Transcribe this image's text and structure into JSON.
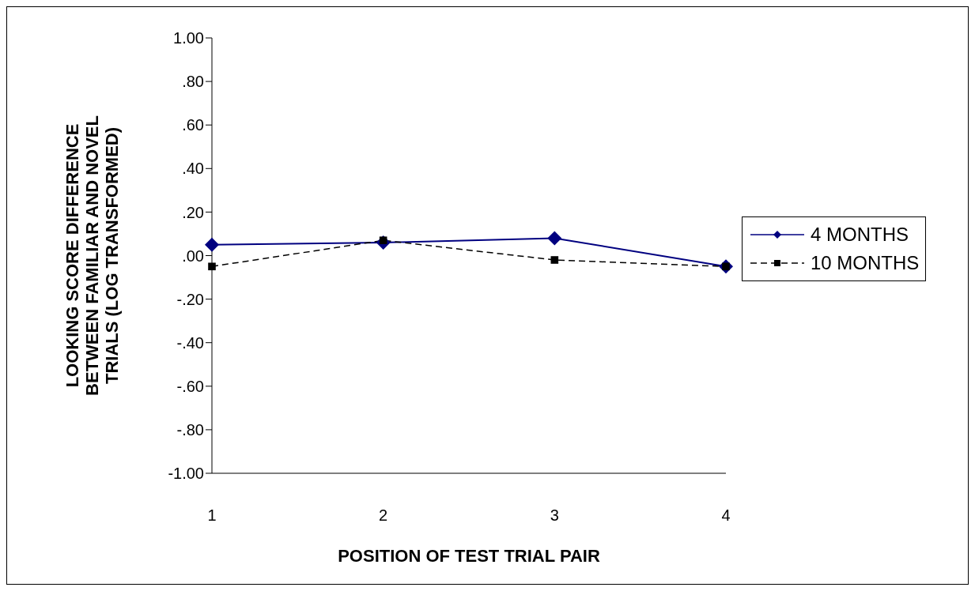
{
  "chart_data": {
    "type": "line",
    "xlabel": "POSITION OF TEST TRIAL PAIR",
    "ylabel": "LOOKING SCORE DIFFERENCE BETWEEN FAMILIAR AND NOVEL TRIALS (LOG TRANSFORMED)",
    "categories": [
      "1",
      "2",
      "3",
      "4"
    ],
    "series": [
      {
        "name": "4 MONTHS",
        "color": "#000080",
        "values": [
          0.05,
          0.06,
          0.08,
          -0.05
        ],
        "marker": "diamond",
        "line_style": "solid"
      },
      {
        "name": "10 MONTHS",
        "color": "#000000",
        "values": [
          -0.05,
          0.07,
          -0.02,
          -0.05
        ],
        "marker": "square",
        "line_style": "dashed"
      }
    ],
    "ylim": [
      -1,
      1
    ],
    "yticks": [
      {
        "value": 1,
        "label": "1.00"
      },
      {
        "value": 0.8,
        "label": ".80"
      },
      {
        "value": 0.6,
        "label": ".60"
      },
      {
        "value": 0.4,
        "label": ".40"
      },
      {
        "value": 0.2,
        "label": ".20"
      },
      {
        "value": 0,
        "label": ".00"
      },
      {
        "value": -0.2,
        "label": "-.20"
      },
      {
        "value": -0.4,
        "label": "-.40"
      },
      {
        "value": -0.6,
        "label": "-.60"
      },
      {
        "value": -0.8,
        "label": "-.80"
      },
      {
        "value": -1,
        "label": "-1.00"
      }
    ],
    "grid": false,
    "legend": "right"
  }
}
